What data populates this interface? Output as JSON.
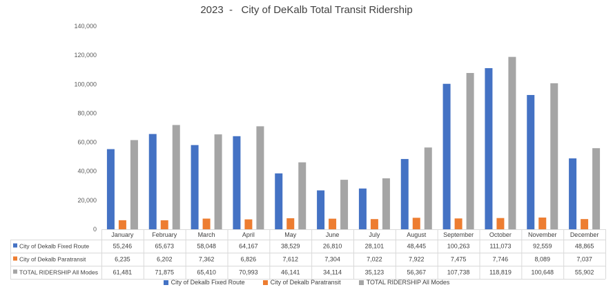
{
  "chart_data": {
    "type": "bar",
    "title": "2023  -   City of DeKalb Total Transit Ridership",
    "categories": [
      "January",
      "February",
      "March",
      "April",
      "May",
      "June",
      "July",
      "August",
      "September",
      "October",
      "November",
      "December"
    ],
    "ylim": [
      0,
      140000
    ],
    "yticks": [
      0,
      20000,
      40000,
      60000,
      80000,
      100000,
      120000,
      140000
    ],
    "ytick_labels": [
      "0",
      "20,000",
      "40,000",
      "60,000",
      "80,000",
      "100,000",
      "120,000",
      "140,000"
    ],
    "grid": false,
    "legend_position": "bottom",
    "data_table": true,
    "series": [
      {
        "name": "City of Dekalb  Fixed Route",
        "color": "#4472C4",
        "values": [
          55246,
          65673,
          58048,
          64167,
          38529,
          26810,
          28101,
          48445,
          100263,
          111073,
          92559,
          48865
        ],
        "labels": [
          "55,246",
          "65,673",
          "58,048",
          "64,167",
          "38,529",
          "26,810",
          "28,101",
          "48,445",
          "100,263",
          "111,073",
          "92,559",
          "48,865"
        ]
      },
      {
        "name": "City of Dekalb  Paratransit",
        "color": "#ED7D31",
        "values": [
          6235,
          6202,
          7362,
          6826,
          7612,
          7304,
          7022,
          7922,
          7475,
          7746,
          8089,
          7037
        ],
        "labels": [
          "6,235",
          "6,202",
          "7,362",
          "6,826",
          "7,612",
          "7,304",
          "7,022",
          "7,922",
          "7,475",
          "7,746",
          "8,089",
          "7,037"
        ]
      },
      {
        "name": "TOTAL RIDERSHIP All Modes",
        "color": "#A5A5A5",
        "values": [
          61481,
          71875,
          65410,
          70993,
          46141,
          34114,
          35123,
          56367,
          107738,
          118819,
          100648,
          55902
        ],
        "labels": [
          "61,481",
          "71,875",
          "65,410",
          "70,993",
          "46,141",
          "34,114",
          "35,123",
          "56,367",
          "107,738",
          "118,819",
          "100,648",
          "55,902"
        ]
      }
    ]
  }
}
